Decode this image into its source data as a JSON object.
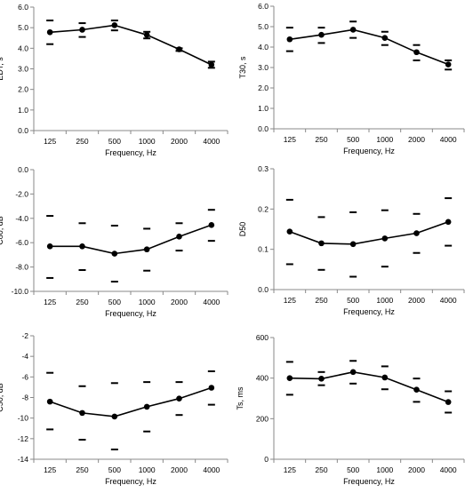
{
  "chart_data": [
    {
      "type": "line",
      "xlabel": "Frequency, Hz",
      "ylabel": "EDT, s",
      "categories": [
        "125",
        "250",
        "500",
        "1000",
        "2000",
        "4000"
      ],
      "ylim": [
        0,
        6
      ],
      "yticks": [
        "0.0",
        "1.0",
        "2.0",
        "3.0",
        "4.0",
        "5.0",
        "6.0"
      ],
      "series": [
        {
          "values": [
            4.78,
            4.9,
            5.12,
            4.65,
            3.95,
            3.2
          ]
        }
      ],
      "upper": [
        5.35,
        5.22,
        5.35,
        4.8,
        4.0,
        3.35
      ],
      "lower": [
        4.2,
        4.55,
        4.87,
        4.48,
        3.87,
        3.05
      ]
    },
    {
      "type": "line",
      "xlabel": "Frequency, Hz",
      "ylabel": "T30, s",
      "categories": [
        "125",
        "250",
        "500",
        "1000",
        "2000",
        "4000"
      ],
      "ylim": [
        0,
        6
      ],
      "yticks": [
        "0.0",
        "1.0",
        "2.0",
        "3.0",
        "4.0",
        "5.0",
        "6.0"
      ],
      "series": [
        {
          "values": [
            4.38,
            4.6,
            4.85,
            4.45,
            3.75,
            3.15
          ]
        }
      ],
      "upper": [
        4.95,
        4.95,
        5.25,
        4.75,
        4.1,
        3.35
      ],
      "lower": [
        3.8,
        4.2,
        4.45,
        4.1,
        3.35,
        2.9
      ]
    },
    {
      "type": "line",
      "xlabel": "Frequency, Hz",
      "ylabel": "C80, dB",
      "categories": [
        "125",
        "250",
        "500",
        "1000",
        "2000",
        "4000"
      ],
      "ylim": [
        -10,
        0
      ],
      "yticks": [
        "-10.0",
        "-8.0",
        "-6.0",
        "-4.0",
        "-2.0",
        "0.0"
      ],
      "series": [
        {
          "values": [
            -6.3,
            -6.3,
            -6.9,
            -6.55,
            -5.5,
            -4.55
          ]
        }
      ],
      "upper": [
        -3.8,
        -4.4,
        -4.6,
        -4.85,
        -4.4,
        -3.3
      ],
      "lower": [
        -8.9,
        -8.25,
        -9.2,
        -8.3,
        -6.65,
        -5.85
      ]
    },
    {
      "type": "line",
      "xlabel": "Frequency, Hz",
      "ylabel": "D50",
      "categories": [
        "125",
        "250",
        "500",
        "1000",
        "2000",
        "4000"
      ],
      "ylim": [
        0,
        0.3
      ],
      "yticks": [
        "0.0",
        "0.1",
        "0.2",
        "0.3"
      ],
      "series": [
        {
          "values": [
            0.144,
            0.115,
            0.113,
            0.127,
            0.14,
            0.168
          ]
        }
      ],
      "upper": [
        0.223,
        0.18,
        0.192,
        0.197,
        0.188,
        0.227
      ],
      "lower": [
        0.063,
        0.049,
        0.032,
        0.057,
        0.091,
        0.109
      ]
    },
    {
      "type": "line",
      "xlabel": "Frequency, Hz",
      "ylabel": "C50, dB",
      "categories": [
        "125",
        "250",
        "500",
        "1000",
        "2000",
        "4000"
      ],
      "ylim": [
        -14,
        -2
      ],
      "yticks": [
        "-14",
        "-12",
        "-10",
        "-8",
        "-6",
        "-4",
        "-2"
      ],
      "series": [
        {
          "values": [
            -8.4,
            -9.5,
            -9.85,
            -8.9,
            -8.1,
            -7.05
          ]
        }
      ],
      "upper": [
        -5.6,
        -6.9,
        -6.6,
        -6.5,
        -6.5,
        -5.45
      ],
      "lower": [
        -11.1,
        -12.1,
        -13.05,
        -11.3,
        -9.7,
        -8.7
      ]
    },
    {
      "type": "line",
      "xlabel": "Frequency, Hz",
      "ylabel": "Ts, ms",
      "categories": [
        "125",
        "250",
        "500",
        "1000",
        "2000",
        "4000"
      ],
      "ylim": [
        0,
        600
      ],
      "yticks": [
        "0",
        "200",
        "400",
        "600"
      ],
      "series": [
        {
          "values": [
            400,
            397,
            430,
            403,
            343,
            282
          ]
        }
      ],
      "upper": [
        480,
        430,
        485,
        458,
        398,
        335
      ],
      "lower": [
        318,
        365,
        373,
        345,
        283,
        230
      ]
    }
  ]
}
